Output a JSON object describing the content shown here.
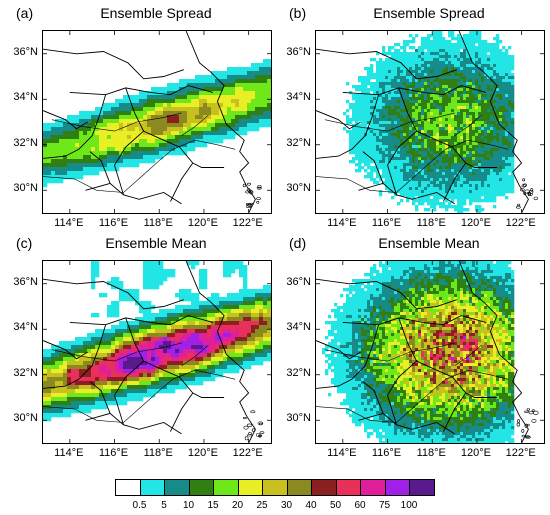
{
  "panels": [
    {
      "id": "a",
      "label": "(a)",
      "title": "Ensemble Spread",
      "show_ylabels": true,
      "show_xlabels": true,
      "style": "smooth",
      "intensity": 0.55
    },
    {
      "id": "b",
      "label": "(b)",
      "title": "Ensemble Spread",
      "show_ylabels": true,
      "show_xlabels": true,
      "style": "speckle",
      "intensity": 0.45
    },
    {
      "id": "c",
      "label": "(c)",
      "title": "Ensemble Mean",
      "show_ylabels": true,
      "show_xlabels": true,
      "style": "smooth",
      "intensity": 0.95
    },
    {
      "id": "d",
      "label": "(d)",
      "title": "Ensemble Mean",
      "show_ylabels": true,
      "show_xlabels": true,
      "style": "speckle",
      "intensity": 0.85
    }
  ],
  "lat_ticks": [
    "30°N",
    "32°N",
    "34°N",
    "36°N"
  ],
  "lon_ticks": [
    "114°E",
    "116°E",
    "118°E",
    "120°E",
    "122°E"
  ],
  "colorbar": {
    "labels": [
      "0.5",
      "5",
      "10",
      "15",
      "20",
      "25",
      "30",
      "40",
      "50",
      "60",
      "75",
      "100"
    ],
    "colors": [
      "#ffffff",
      "#22e5e5",
      "#178a8a",
      "#2f7f12",
      "#6ee818",
      "#e8f025",
      "#c8c01f",
      "#8a8a20",
      "#8a2020",
      "#e8305a",
      "#e0209a",
      "#a020e8",
      "#5a1a8c"
    ]
  }
}
